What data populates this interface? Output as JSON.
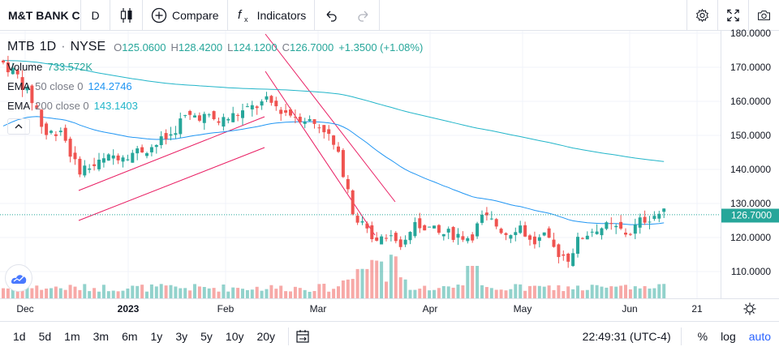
{
  "toolbar": {
    "symbol": "M&T BANK C",
    "interval": "D",
    "compare_label": "Compare",
    "indicators_label": "Indicators"
  },
  "legend": {
    "symbol": "MTB",
    "interval": "1D",
    "exchange": "NYSE",
    "open_label": "O",
    "open": "125.0600",
    "high_label": "H",
    "high": "128.4200",
    "low_label": "L",
    "low": "124.1200",
    "close_label": "C",
    "close": "126.7000",
    "change": "+1.3500 (+1.08%)",
    "volume_label": "Volume",
    "volume_value": "733.572K",
    "ema50_label": "EMA",
    "ema50_params": "50 close 0",
    "ema50_value": "124.2746",
    "ema200_label": "EMA",
    "ema200_params": "200 close 0",
    "ema200_value": "143.1403"
  },
  "price_axis": {
    "labels": [
      "180.0000",
      "170.0000",
      "160.0000",
      "150.0000",
      "140.0000",
      "130.0000",
      "120.0000",
      "110.0000"
    ],
    "last_price": "126.7000"
  },
  "time_axis": {
    "labels": [
      "Dec",
      "2023",
      "Feb",
      "Mar",
      "Apr",
      "May",
      "Jun",
      "21"
    ]
  },
  "bottom_bar": {
    "ranges": [
      "1d",
      "5d",
      "1m",
      "3m",
      "6m",
      "1y",
      "3y",
      "5y",
      "10y",
      "20y"
    ],
    "clock": "22:49:31 (UTC-4)",
    "percent_label": "%",
    "log_label": "log",
    "auto_label": "auto"
  },
  "colors": {
    "up": "#26a69a",
    "down": "#ef5350",
    "ema50": "#2196f3",
    "ema200": "#22b5c9",
    "channel": "#e91e63",
    "accent": "#2962ff"
  },
  "icons": [
    "candlestick-icon",
    "plus-circle-icon",
    "fx-icon",
    "undo-icon",
    "redo-icon",
    "gear-icon",
    "fullscreen-icon",
    "camera-icon",
    "chevron-up-icon",
    "calendar-range-icon",
    "sun-gear-icon",
    "tradingview-logo-icon"
  ],
  "chart_data": {
    "type": "candlestick",
    "title": "MTB 1D NYSE",
    "ylim": [
      103,
      181
    ],
    "x": [
      "Dec",
      "2023",
      "Feb",
      "Mar",
      "Apr",
      "May",
      "Jun",
      "21"
    ],
    "series": [
      {
        "name": "EMA 50 close 0",
        "last": 124.2746
      },
      {
        "name": "EMA 200 close 0",
        "last": 143.1403
      }
    ],
    "last_close": 126.7
  }
}
